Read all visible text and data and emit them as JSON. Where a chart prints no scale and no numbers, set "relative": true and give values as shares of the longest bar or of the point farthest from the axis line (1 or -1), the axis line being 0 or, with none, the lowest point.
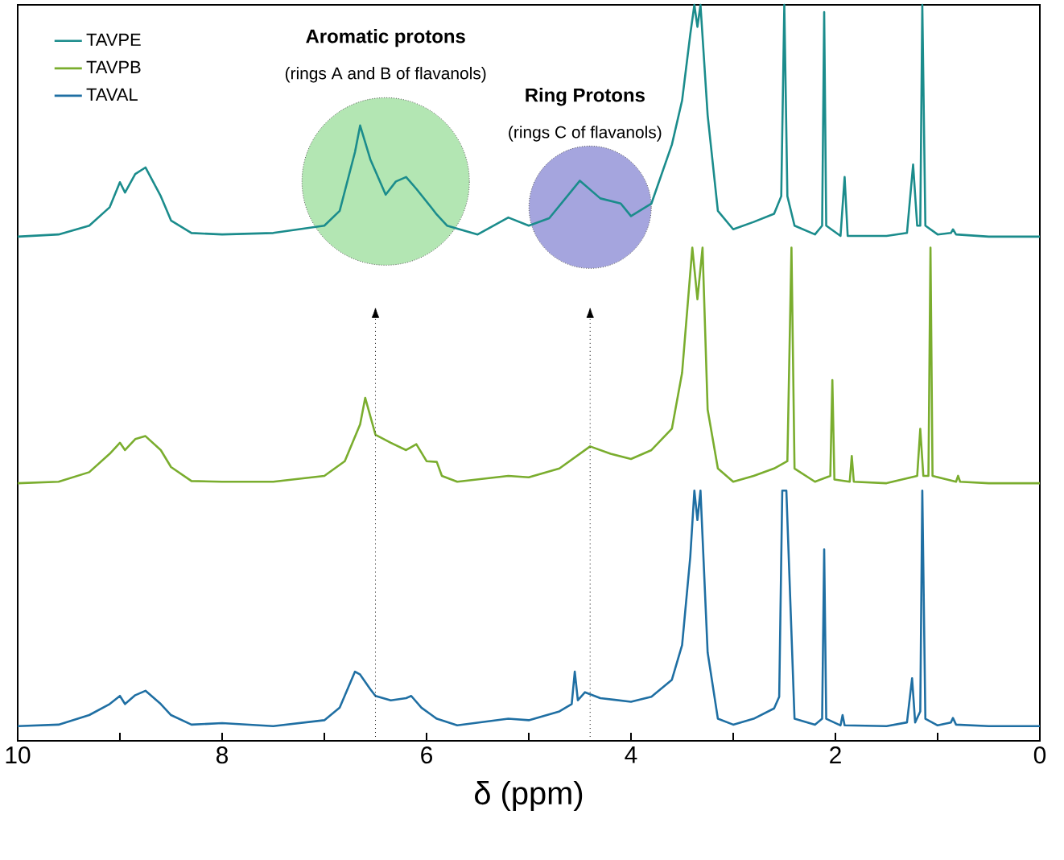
{
  "chart_data": {
    "type": "line",
    "relative": true,
    "xlabel": "δ (ppm)",
    "xlim": [
      10,
      0
    ],
    "xticks": [
      10,
      {
        "value": 9,
        "label": null
      },
      8,
      {
        "value": 7,
        "label": null
      },
      6,
      {
        "value": 5,
        "label": null
      },
      4,
      {
        "value": 3,
        "label": null
      },
      2,
      {
        "value": 1,
        "label": null
      },
      0
    ],
    "legend": "top left",
    "grid": false,
    "marker": "none",
    "line_style": "solid",
    "series": [
      {
        "name": "TAVPE",
        "color": "#1b8c8c",
        "x": [
          10,
          9.6,
          9.3,
          9.1,
          9.0,
          8.95,
          8.85,
          8.75,
          8.6,
          8.5,
          8.3,
          8.0,
          7.5,
          7.0,
          6.85,
          6.7,
          6.65,
          6.55,
          6.4,
          6.3,
          6.2,
          6.1,
          5.95,
          5.9,
          5.8,
          5.5,
          5.2,
          5.0,
          4.8,
          4.5,
          4.3,
          4.1,
          4.0,
          3.8,
          3.6,
          3.5,
          3.42,
          3.38,
          3.35,
          3.32,
          3.25,
          3.15,
          3.0,
          2.8,
          2.6,
          2.53,
          2.5,
          2.47,
          2.4,
          2.2,
          2.13,
          2.11,
          2.09,
          1.95,
          1.91,
          1.88,
          1.5,
          1.3,
          1.24,
          1.2,
          1.17,
          1.15,
          1.12,
          1.0,
          0.87,
          0.85,
          0.82,
          0.5,
          0
        ],
        "values": [
          0.685,
          0.688,
          0.7,
          0.725,
          0.759,
          0.745,
          0.77,
          0.779,
          0.74,
          0.707,
          0.69,
          0.688,
          0.69,
          0.7,
          0.72,
          0.8,
          0.836,
          0.79,
          0.742,
          0.76,
          0.766,
          0.75,
          0.724,
          0.715,
          0.7,
          0.688,
          0.711,
          0.7,
          0.71,
          0.761,
          0.737,
          0.73,
          0.713,
          0.73,
          0.81,
          0.87,
          0.96,
          1.0,
          0.97,
          1.0,
          0.85,
          0.72,
          0.695,
          0.705,
          0.716,
          0.74,
          1.0,
          0.74,
          0.7,
          0.688,
          0.7,
          0.99,
          0.7,
          0.686,
          0.766,
          0.686,
          0.686,
          0.69,
          0.783,
          0.7,
          0.7,
          1.0,
          0.7,
          0.688,
          0.69,
          0.695,
          0.688,
          0.685,
          0.685
        ]
      },
      {
        "name": "TAVPB",
        "color": "#7aad2e",
        "x": [
          10,
          9.6,
          9.3,
          9.1,
          9.0,
          8.95,
          8.85,
          8.75,
          8.6,
          8.5,
          8.3,
          8.0,
          7.5,
          7.0,
          6.8,
          6.65,
          6.6,
          6.5,
          6.35,
          6.2,
          6.1,
          6.0,
          5.9,
          5.85,
          5.7,
          5.2,
          5.0,
          4.7,
          4.4,
          4.2,
          4.0,
          3.8,
          3.6,
          3.5,
          3.4,
          3.35,
          3.3,
          3.25,
          3.15,
          3.0,
          2.8,
          2.6,
          2.47,
          2.43,
          2.4,
          2.2,
          2.05,
          2.03,
          2.01,
          1.86,
          1.84,
          1.82,
          1.5,
          1.2,
          1.17,
          1.14,
          1.09,
          1.07,
          1.05,
          0.82,
          0.8,
          0.78,
          0.5,
          0
        ],
        "values": [
          0.35,
          0.352,
          0.365,
          0.39,
          0.405,
          0.395,
          0.41,
          0.414,
          0.395,
          0.372,
          0.353,
          0.352,
          0.352,
          0.36,
          0.38,
          0.43,
          0.466,
          0.416,
          0.405,
          0.395,
          0.403,
          0.38,
          0.379,
          0.36,
          0.352,
          0.36,
          0.358,
          0.37,
          0.4,
          0.39,
          0.383,
          0.395,
          0.424,
          0.5,
          0.67,
          0.6,
          0.67,
          0.45,
          0.37,
          0.352,
          0.36,
          0.37,
          0.38,
          0.67,
          0.37,
          0.352,
          0.36,
          0.49,
          0.355,
          0.352,
          0.387,
          0.352,
          0.35,
          0.36,
          0.424,
          0.36,
          0.36,
          0.67,
          0.36,
          0.352,
          0.36,
          0.352,
          0.35,
          0.35
        ]
      },
      {
        "name": "TAVAL",
        "color": "#1f6fa3",
        "x": [
          10,
          9.6,
          9.3,
          9.1,
          9.0,
          8.95,
          8.85,
          8.75,
          8.6,
          8.5,
          8.3,
          8.0,
          7.5,
          7.0,
          6.85,
          6.7,
          6.65,
          6.55,
          6.5,
          6.35,
          6.2,
          6.15,
          6.05,
          5.95,
          5.9,
          5.7,
          5.2,
          5.0,
          4.7,
          4.58,
          4.55,
          4.52,
          4.45,
          4.3,
          4.0,
          3.8,
          3.6,
          3.5,
          3.42,
          3.38,
          3.35,
          3.32,
          3.25,
          3.15,
          3.0,
          2.8,
          2.6,
          2.55,
          2.52,
          2.48,
          2.4,
          2.2,
          2.13,
          2.11,
          2.09,
          1.95,
          1.93,
          1.91,
          1.5,
          1.3,
          1.25,
          1.22,
          1.17,
          1.15,
          1.12,
          1.0,
          0.87,
          0.85,
          0.82,
          0.5,
          0
        ],
        "values": [
          0.02,
          0.022,
          0.035,
          0.05,
          0.061,
          0.05,
          0.062,
          0.068,
          0.05,
          0.035,
          0.022,
          0.024,
          0.02,
          0.028,
          0.045,
          0.094,
          0.09,
          0.07,
          0.061,
          0.055,
          0.058,
          0.061,
          0.045,
          0.035,
          0.03,
          0.021,
          0.03,
          0.028,
          0.04,
          0.05,
          0.094,
          0.055,
          0.066,
          0.058,
          0.053,
          0.06,
          0.083,
          0.13,
          0.25,
          0.34,
          0.3,
          0.34,
          0.12,
          0.03,
          0.022,
          0.03,
          0.044,
          0.06,
          0.34,
          0.34,
          0.03,
          0.022,
          0.03,
          0.26,
          0.03,
          0.021,
          0.035,
          0.021,
          0.02,
          0.025,
          0.085,
          0.025,
          0.04,
          0.34,
          0.03,
          0.021,
          0.025,
          0.031,
          0.022,
          0.02,
          0.02
        ]
      }
    ],
    "ref_lines": [
      {
        "axis": "x",
        "value": 6.5,
        "line_style": "dotted"
      },
      {
        "axis": "x",
        "value": 4.4,
        "line_style": "dotted"
      }
    ],
    "annotations": [
      "Aromatic protons",
      "(rings A and B of flavanols)",
      "Ring Protons",
      "(rings C of flavanols)"
    ]
  }
}
